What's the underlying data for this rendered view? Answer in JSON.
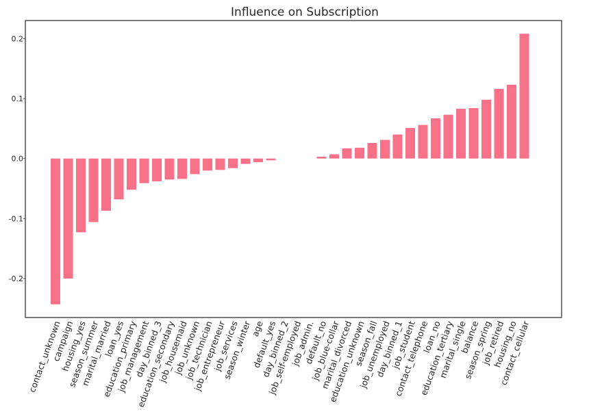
{
  "chart_data": {
    "type": "bar",
    "title": "Influence on Subscription",
    "xlabel": "",
    "ylabel": "",
    "ylim": [
      -0.265,
      0.23
    ],
    "yticks": [
      0.2,
      0.1,
      0.0,
      -0.1,
      -0.2
    ],
    "ytick_labels": [
      "0.2",
      "0.1",
      "0.0",
      "-0.1",
      "-0.2"
    ],
    "grid": false,
    "bar_color": "#f77189",
    "categories": [
      "contact_unknown",
      "campaign",
      "housing_yes",
      "season_summer",
      "marital_married",
      "loan_yes",
      "education_primary",
      "job_management",
      "day_binned_3",
      "education_secondary",
      "job_housemaid",
      "job_unknown",
      "job_technician",
      "job_entrepreneur",
      "job_services",
      "season_winter",
      "age",
      "default_yes",
      "day_binned_2",
      "job_self-employed",
      "job_admin.",
      "default_no",
      "job_blue-collar",
      "marital_divorced",
      "education_unknown",
      "season_fall",
      "job_unemployed",
      "day_binned_1",
      "job_student",
      "contact_telephone",
      "loan_no",
      "education_tertiary",
      "marital_single",
      "balance",
      "season_spring",
      "job_retired",
      "housing_no",
      "contact_cellular"
    ],
    "values": [
      -0.243,
      -0.2,
      -0.123,
      -0.106,
      -0.087,
      -0.068,
      -0.052,
      -0.041,
      -0.038,
      -0.035,
      -0.034,
      -0.026,
      -0.02,
      -0.019,
      -0.016,
      -0.009,
      -0.006,
      -0.003,
      0.0,
      0.0,
      0.0,
      0.003,
      0.007,
      0.017,
      0.018,
      0.026,
      0.031,
      0.04,
      0.051,
      0.056,
      0.067,
      0.073,
      0.083,
      0.084,
      0.098,
      0.116,
      0.123,
      0.208
    ]
  }
}
